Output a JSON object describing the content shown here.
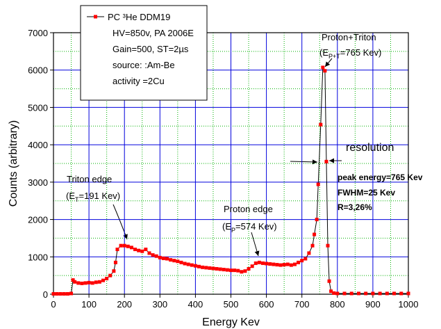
{
  "chart_data": {
    "type": "line",
    "xlabel": "Energy Kev",
    "ylabel": "Counts (arbitrary)",
    "xlim": [
      0,
      1000
    ],
    "ylim": [
      0,
      7000
    ],
    "xticks": [
      0,
      100,
      200,
      300,
      400,
      500,
      600,
      700,
      800,
      900,
      1000
    ],
    "yticks": [
      0,
      1000,
      2000,
      3000,
      4000,
      5000,
      6000,
      7000
    ],
    "grid": true,
    "minor_grid": true,
    "legend": "upper left",
    "series": [
      {
        "name": "PC ³He DDM19",
        "color": "#ff0000",
        "line_color": "#000000",
        "x": [
          0,
          10,
          20,
          30,
          40,
          50,
          55,
          60,
          70,
          80,
          90,
          100,
          110,
          120,
          130,
          140,
          150,
          160,
          170,
          175,
          180,
          190,
          200,
          210,
          220,
          230,
          240,
          250,
          260,
          270,
          280,
          290,
          300,
          310,
          320,
          330,
          340,
          350,
          360,
          370,
          380,
          390,
          400,
          410,
          420,
          430,
          440,
          450,
          460,
          470,
          480,
          490,
          500,
          510,
          520,
          530,
          540,
          550,
          560,
          570,
          580,
          590,
          600,
          610,
          620,
          630,
          640,
          650,
          660,
          670,
          680,
          690,
          700,
          710,
          720,
          730,
          735,
          742,
          746,
          753,
          759,
          765,
          769,
          773,
          777,
          782,
          790,
          800,
          820,
          840,
          860,
          880,
          900,
          920,
          940,
          960,
          980,
          1000
        ],
        "values": [
          10,
          10,
          10,
          10,
          10,
          20,
          380,
          330,
          300,
          290,
          300,
          310,
          300,
          320,
          330,
          370,
          420,
          500,
          620,
          850,
          1200,
          1300,
          1300,
          1280,
          1250,
          1200,
          1170,
          1150,
          1200,
          1100,
          1050,
          1020,
          980,
          960,
          950,
          920,
          900,
          880,
          850,
          820,
          800,
          780,
          760,
          740,
          720,
          710,
          700,
          690,
          680,
          670,
          660,
          650,
          640,
          640,
          630,
          600,
          620,
          680,
          750,
          830,
          850,
          830,
          820,
          810,
          800,
          790,
          780,
          790,
          800,
          780,
          800,
          850,
          900,
          950,
          1100,
          1300,
          1600,
          2000,
          2940,
          4540,
          6070,
          5980,
          3550,
          1300,
          350,
          80,
          30,
          20,
          20,
          20,
          20,
          20,
          20,
          20,
          20,
          20,
          20,
          20
        ]
      }
    ],
    "legend_notes": [
      "HV=850v, PA 2006E",
      "Gain=500, ST=2µs",
      "source: :Am-Be",
      " activity =2Cu"
    ],
    "annotations": [
      {
        "text": "Proton+Triton"
      },
      {
        "pre": "(E",
        "sub": "P+T",
        "post": "=765 Kev)"
      },
      {
        "text": "Triton edge"
      },
      {
        "pre": "(E",
        "sub": "T",
        "post": "=191 Kev)"
      },
      {
        "text": "Proton edge"
      },
      {
        "pre": "(E",
        "sub": "P",
        "post": "=574 Kev)"
      },
      {
        "text": "resolution"
      },
      {
        "text": "peak energy=765 Kev"
      },
      {
        "text": "FWHM=25 Kev"
      },
      {
        "text": "R=3,26%"
      }
    ]
  }
}
